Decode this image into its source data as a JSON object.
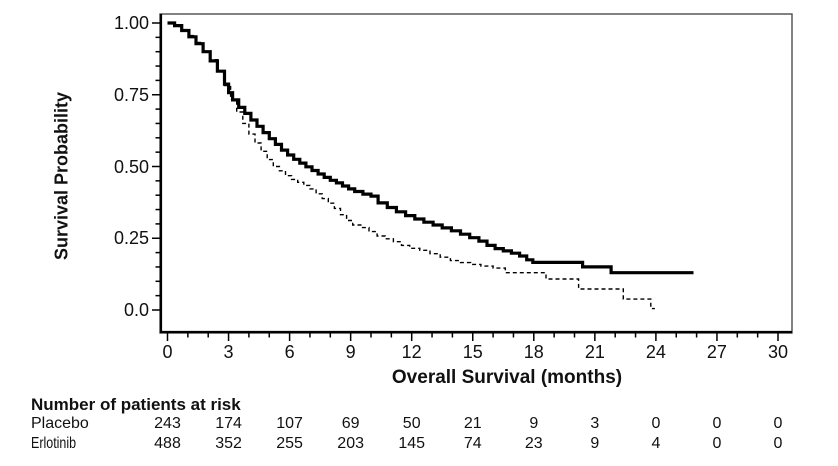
{
  "chart_data": {
    "type": "line",
    "variant": "kaplan-meier-step",
    "title": "",
    "xlabel": "Overall Survival (months)",
    "ylabel": "Survival Probability",
    "xlim": [
      0,
      31
    ],
    "ylim": [
      0,
      1
    ],
    "grid": false,
    "legend_position": "none",
    "xticks": {
      "major_values": [
        0,
        3,
        6,
        9,
        12,
        15,
        18,
        21,
        24,
        27,
        30
      ],
      "major_labels": [
        "0",
        "3",
        "6",
        "9",
        "12",
        "15",
        "18",
        "21",
        "24",
        "27",
        "30"
      ],
      "minor_step": 1
    },
    "yticks": {
      "major_values": [
        1.0,
        0.75,
        0.5,
        0.25,
        0.0
      ],
      "major_labels": [
        "1.00",
        "0.75",
        "0.50",
        "0.25",
        "0.0"
      ],
      "minor_step": 0.05
    },
    "series": [
      {
        "name": "Placebo",
        "line_style": "dashed",
        "stroke_width": 1.4,
        "color": "#000000",
        "points": [
          [
            0,
            1.0
          ],
          [
            0.35,
            0.988
          ],
          [
            0.7,
            0.972
          ],
          [
            1.05,
            0.956
          ],
          [
            1.4,
            0.932
          ],
          [
            1.75,
            0.902
          ],
          [
            2.1,
            0.872
          ],
          [
            2.45,
            0.83
          ],
          [
            2.8,
            0.782
          ],
          [
            3.1,
            0.733
          ],
          [
            3.4,
            0.69
          ],
          [
            3.7,
            0.65
          ],
          [
            4.0,
            0.613
          ],
          [
            4.3,
            0.582
          ],
          [
            4.6,
            0.553
          ],
          [
            4.9,
            0.524
          ],
          [
            5.2,
            0.5
          ],
          [
            5.5,
            0.485
          ],
          [
            5.8,
            0.468
          ],
          [
            6.1,
            0.455
          ],
          [
            6.4,
            0.445
          ],
          [
            6.7,
            0.434
          ],
          [
            7.0,
            0.422
          ],
          [
            7.3,
            0.405
          ],
          [
            7.6,
            0.388
          ],
          [
            7.9,
            0.372
          ],
          [
            8.2,
            0.354
          ],
          [
            8.5,
            0.332
          ],
          [
            8.8,
            0.312
          ],
          [
            9.1,
            0.296
          ],
          [
            9.5,
            0.287
          ],
          [
            9.9,
            0.273
          ],
          [
            10.3,
            0.258
          ],
          [
            10.7,
            0.248
          ],
          [
            11.1,
            0.238
          ],
          [
            11.5,
            0.225
          ],
          [
            11.9,
            0.215
          ],
          [
            12.4,
            0.208
          ],
          [
            12.9,
            0.196
          ],
          [
            13.4,
            0.184
          ],
          [
            13.9,
            0.172
          ],
          [
            14.4,
            0.165
          ],
          [
            14.9,
            0.159
          ],
          [
            15.4,
            0.153
          ],
          [
            16.0,
            0.146
          ],
          [
            16.6,
            0.13
          ],
          [
            18.6,
            0.108
          ],
          [
            20.2,
            0.073
          ],
          [
            22.4,
            0.038
          ],
          [
            23.75,
            0.005
          ],
          [
            23.95,
            0.005
          ]
        ]
      },
      {
        "name": "Erlotinib",
        "line_style": "solid",
        "stroke_width": 3.2,
        "color": "#000000",
        "points": [
          [
            0,
            1.0
          ],
          [
            0.35,
            0.991
          ],
          [
            0.7,
            0.974
          ],
          [
            1.05,
            0.952
          ],
          [
            1.4,
            0.928
          ],
          [
            1.75,
            0.9
          ],
          [
            2.1,
            0.868
          ],
          [
            2.45,
            0.832
          ],
          [
            2.8,
            0.787
          ],
          [
            3.0,
            0.757
          ],
          [
            3.2,
            0.732
          ],
          [
            3.5,
            0.706
          ],
          [
            3.8,
            0.685
          ],
          [
            4.1,
            0.662
          ],
          [
            4.4,
            0.64
          ],
          [
            4.7,
            0.618
          ],
          [
            5.0,
            0.597
          ],
          [
            5.3,
            0.577
          ],
          [
            5.6,
            0.557
          ],
          [
            5.9,
            0.54
          ],
          [
            6.2,
            0.525
          ],
          [
            6.5,
            0.512
          ],
          [
            6.8,
            0.499
          ],
          [
            7.1,
            0.486
          ],
          [
            7.4,
            0.474
          ],
          [
            7.7,
            0.462
          ],
          [
            8.0,
            0.452
          ],
          [
            8.3,
            0.443
          ],
          [
            8.6,
            0.432
          ],
          [
            8.9,
            0.422
          ],
          [
            9.2,
            0.413
          ],
          [
            9.6,
            0.404
          ],
          [
            10.0,
            0.397
          ],
          [
            10.35,
            0.373
          ],
          [
            10.8,
            0.357
          ],
          [
            11.25,
            0.342
          ],
          [
            11.7,
            0.329
          ],
          [
            12.15,
            0.317
          ],
          [
            12.6,
            0.306
          ],
          [
            13.05,
            0.296
          ],
          [
            13.5,
            0.286
          ],
          [
            13.95,
            0.276
          ],
          [
            14.4,
            0.264
          ],
          [
            14.85,
            0.252
          ],
          [
            15.3,
            0.24
          ],
          [
            15.7,
            0.225
          ],
          [
            16.1,
            0.214
          ],
          [
            16.5,
            0.206
          ],
          [
            16.9,
            0.198
          ],
          [
            17.3,
            0.188
          ],
          [
            17.65,
            0.175
          ],
          [
            17.95,
            0.166
          ],
          [
            20.4,
            0.15
          ],
          [
            21.8,
            0.13
          ],
          [
            25.85,
            0.13
          ]
        ]
      }
    ]
  },
  "risk_table": {
    "title": "Number of patients at risk",
    "time_points": [
      0,
      3,
      6,
      9,
      12,
      15,
      18,
      21,
      24,
      27,
      30
    ],
    "rows": [
      {
        "label": "Placebo",
        "values": [
          "243",
          "174",
          "107",
          "69",
          "50",
          "21",
          "9",
          "3",
          "0",
          "0",
          "0"
        ]
      },
      {
        "label": "Erlotinib",
        "values": [
          "488",
          "352",
          "255",
          "203",
          "145",
          "74",
          "23",
          "9",
          "4",
          "0",
          "0"
        ]
      }
    ]
  },
  "colors": {
    "curves": "#000000",
    "frame": "#4d4d4d",
    "axis": "#000000",
    "text": "#111111",
    "background": "#ffffff"
  }
}
